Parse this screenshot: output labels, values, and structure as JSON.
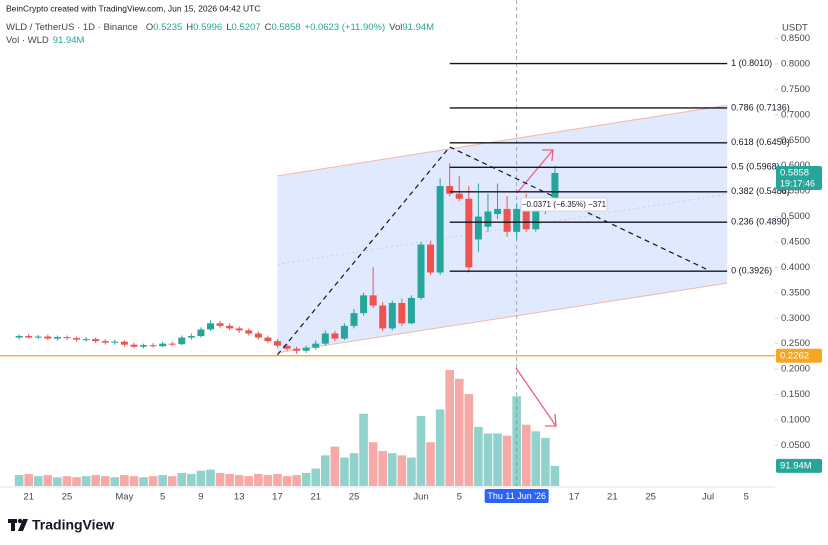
{
  "chart_data": {
    "type": "candlestick",
    "attribution": "BeinCrypto created with TradingView.com, Jun 15, 2026 04:42 UTC",
    "symbol": "WLD / TetherUS · 1D · Binance",
    "ohlc_labels": [
      "O",
      "H",
      "L",
      "C"
    ],
    "change": "+0.0623 (+11.90%)",
    "vol_prefix": "Vol",
    "volume_legend": "Vol · WLD",
    "volume_label": "91.94M",
    "currency": "USDT",
    "countdown": "19:17:46",
    "brand": "TradingView",
    "up_color": "#26a69a",
    "down_color": "#ef5350",
    "xlim": [
      "2026-04-18",
      "2026-07-08"
    ],
    "xticks": [
      {
        "value": "2026-04-21",
        "label": "21"
      },
      {
        "value": "2026-04-25",
        "label": "25"
      },
      {
        "value": "2026-05-01",
        "label": "May"
      },
      {
        "value": "2026-05-05",
        "label": "5"
      },
      {
        "value": "2026-05-09",
        "label": "9"
      },
      {
        "value": "2026-05-13",
        "label": "13"
      },
      {
        "value": "2026-05-17",
        "label": "17"
      },
      {
        "value": "2026-05-21",
        "label": "21"
      },
      {
        "value": "2026-05-25",
        "label": "25"
      },
      {
        "value": "2026-06-01",
        "label": "Jun"
      },
      {
        "value": "2026-06-05",
        "label": "5"
      },
      {
        "value": "2026-06-17",
        "label": "17"
      },
      {
        "value": "2026-06-21",
        "label": "21"
      },
      {
        "value": "2026-06-25",
        "label": "25"
      },
      {
        "value": "2026-07-01",
        "label": "Jul"
      },
      {
        "value": "2026-07-05",
        "label": "5"
      }
    ],
    "ylim": [
      -0.03,
      0.926
    ],
    "yticks": [
      {
        "value": 0.05,
        "label": "0.0500"
      },
      {
        "value": 0.1,
        "label": "0.1000"
      },
      {
        "value": 0.15,
        "label": "0.1500"
      },
      {
        "value": 0.2,
        "label": "0.2000"
      },
      {
        "value": 0.25,
        "label": "0.2500"
      },
      {
        "value": 0.3,
        "label": "0.3000"
      },
      {
        "value": 0.35,
        "label": "0.3500"
      },
      {
        "value": 0.4,
        "label": "0.4000"
      },
      {
        "value": 0.45,
        "label": "0.4500"
      },
      {
        "value": 0.5,
        "label": "0.5000"
      },
      {
        "value": 0.55,
        "label": "0.5500"
      },
      {
        "value": 0.6,
        "label": "0.6000"
      },
      {
        "value": 0.65,
        "label": "0.6500"
      },
      {
        "value": 0.7,
        "label": "0.7000"
      },
      {
        "value": 0.75,
        "label": "0.7500"
      },
      {
        "value": 0.8,
        "label": "0.8000"
      },
      {
        "value": 0.85,
        "label": "0.8500"
      }
    ],
    "grid": false,
    "candles": {
      "x": [
        "2026-04-20",
        "2026-04-21",
        "2026-04-22",
        "2026-04-23",
        "2026-04-24",
        "2026-04-25",
        "2026-04-26",
        "2026-04-27",
        "2026-04-28",
        "2026-04-29",
        "2026-04-30",
        "2026-05-01",
        "2026-05-02",
        "2026-05-03",
        "2026-05-04",
        "2026-05-05",
        "2026-05-06",
        "2026-05-07",
        "2026-05-08",
        "2026-05-09",
        "2026-05-10",
        "2026-05-11",
        "2026-05-12",
        "2026-05-13",
        "2026-05-14",
        "2026-05-15",
        "2026-05-16",
        "2026-05-17",
        "2026-05-18",
        "2026-05-19",
        "2026-05-20",
        "2026-05-21",
        "2026-05-22",
        "2026-05-23",
        "2026-05-24",
        "2026-05-25",
        "2026-05-26",
        "2026-05-27",
        "2026-05-28",
        "2026-05-29",
        "2026-05-30",
        "2026-05-31",
        "2026-06-01",
        "2026-06-02",
        "2026-06-03",
        "2026-06-04",
        "2026-06-05",
        "2026-06-06",
        "2026-06-07",
        "2026-06-08",
        "2026-06-09",
        "2026-06-10",
        "2026-06-11",
        "2026-06-12",
        "2026-06-13",
        "2026-06-14",
        "2026-06-15"
      ],
      "open": [
        0.262,
        0.265,
        0.262,
        0.264,
        0.26,
        0.263,
        0.261,
        0.258,
        0.259,
        0.255,
        0.252,
        0.254,
        0.248,
        0.244,
        0.247,
        0.245,
        0.25,
        0.249,
        0.262,
        0.265,
        0.278,
        0.29,
        0.285,
        0.28,
        0.276,
        0.27,
        0.262,
        0.255,
        0.246,
        0.24,
        0.236,
        0.242,
        0.25,
        0.27,
        0.26,
        0.285,
        0.31,
        0.345,
        0.325,
        0.28,
        0.33,
        0.29,
        0.34,
        0.445,
        0.39,
        0.56,
        0.545,
        0.535,
        0.455,
        0.48,
        0.505,
        0.515,
        0.47,
        0.52,
        0.475,
        0.515,
        0.5235
      ],
      "high": [
        0.268,
        0.269,
        0.267,
        0.268,
        0.266,
        0.266,
        0.264,
        0.263,
        0.262,
        0.259,
        0.258,
        0.257,
        0.252,
        0.25,
        0.251,
        0.254,
        0.254,
        0.266,
        0.27,
        0.282,
        0.296,
        0.295,
        0.29,
        0.284,
        0.28,
        0.274,
        0.266,
        0.259,
        0.25,
        0.244,
        0.246,
        0.256,
        0.276,
        0.275,
        0.29,
        0.318,
        0.35,
        0.4,
        0.332,
        0.335,
        0.338,
        0.345,
        0.45,
        0.452,
        0.575,
        0.605,
        0.58,
        0.56,
        0.565,
        0.545,
        0.565,
        0.54,
        0.525,
        0.545,
        0.525,
        0.535,
        0.5996
      ],
      "low": [
        0.258,
        0.26,
        0.259,
        0.257,
        0.256,
        0.257,
        0.254,
        0.254,
        0.251,
        0.248,
        0.248,
        0.244,
        0.241,
        0.241,
        0.242,
        0.243,
        0.245,
        0.247,
        0.258,
        0.262,
        0.275,
        0.281,
        0.276,
        0.271,
        0.266,
        0.258,
        0.251,
        0.242,
        0.236,
        0.23,
        0.232,
        0.238,
        0.246,
        0.255,
        0.257,
        0.28,
        0.305,
        0.32,
        0.275,
        0.276,
        0.285,
        0.288,
        0.336,
        0.385,
        0.385,
        0.54,
        0.53,
        0.39,
        0.43,
        0.47,
        0.495,
        0.46,
        0.455,
        0.47,
        0.47,
        0.505,
        0.5207
      ],
      "close": [
        0.265,
        0.262,
        0.264,
        0.26,
        0.263,
        0.261,
        0.258,
        0.259,
        0.255,
        0.252,
        0.254,
        0.248,
        0.244,
        0.247,
        0.245,
        0.25,
        0.249,
        0.262,
        0.265,
        0.278,
        0.29,
        0.285,
        0.28,
        0.276,
        0.27,
        0.262,
        0.255,
        0.246,
        0.24,
        0.236,
        0.242,
        0.25,
        0.27,
        0.26,
        0.285,
        0.31,
        0.345,
        0.325,
        0.28,
        0.33,
        0.29,
        0.34,
        0.445,
        0.39,
        0.56,
        0.545,
        0.535,
        0.4,
        0.5,
        0.51,
        0.515,
        0.47,
        0.515,
        0.475,
        0.515,
        0.5235,
        0.5858
      ],
      "volume": [
        50,
        55,
        45,
        50,
        40,
        45,
        40,
        45,
        50,
        45,
        40,
        50,
        45,
        40,
        45,
        50,
        45,
        60,
        55,
        70,
        75,
        60,
        55,
        50,
        45,
        55,
        50,
        55,
        45,
        50,
        60,
        80,
        140,
        180,
        130,
        150,
        330,
        200,
        160,
        150,
        140,
        130,
        320,
        200,
        350,
        530,
        490,
        420,
        270,
        240,
        240,
        230,
        410,
        280,
        250,
        220,
        91.94
      ]
    },
    "support": {
      "value": 0.2262,
      "label": "0.2262",
      "color": "#f5a623"
    },
    "channel": {
      "x": [
        "2026-05-17",
        "2026-07-03"
      ],
      "top": [
        0.58,
        0.719
      ],
      "bottom": [
        0.232,
        0.369
      ]
    },
    "zigzag": {
      "x": [
        "2026-05-17",
        "2026-06-04",
        "2026-07-01"
      ],
      "y": [
        0.228,
        0.637,
        0.395
      ]
    },
    "fib": {
      "x": [
        "2026-06-04",
        "2026-07-03"
      ],
      "levels": [
        {
          "label": "1 (0.8010)",
          "value": 0.801
        },
        {
          "label": "0.786 (0.7136)",
          "value": 0.7136
        },
        {
          "label": "0.618 (0.6450)",
          "value": 0.645
        },
        {
          "label": "0.5 (0.5968)",
          "value": 0.5968
        },
        {
          "label": "0.382 (0.5486)",
          "value": 0.5486
        },
        {
          "label": "0.236 (0.4890)",
          "value": 0.489
        },
        {
          "label": "0 (0.3926)",
          "value": 0.3926
        }
      ]
    },
    "measure_label": "−0.0371 (−6.35%) −371",
    "crosshair": {
      "x": "2026-06-11",
      "label": "Thu 11 Jun '26"
    }
  }
}
